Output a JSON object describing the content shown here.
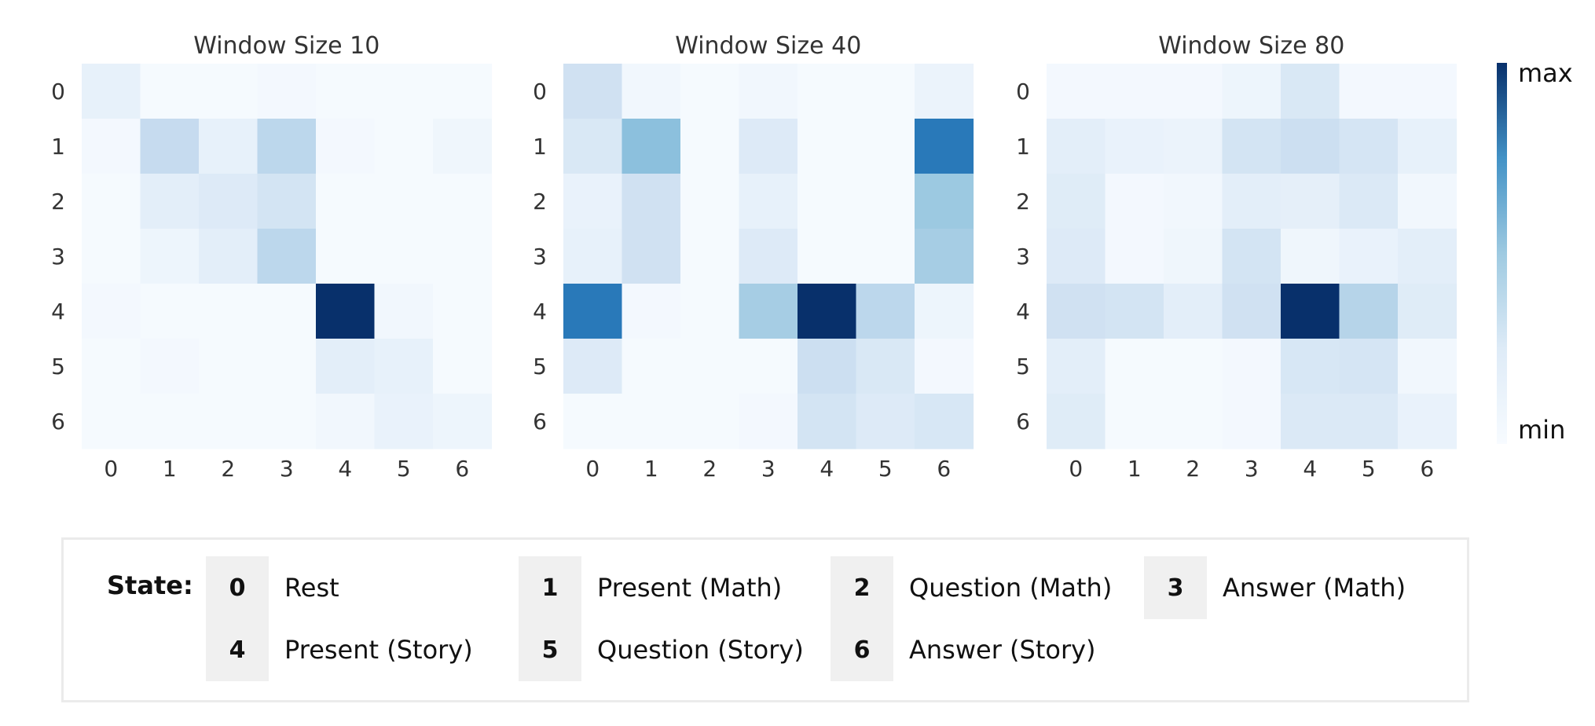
{
  "chart_data": {
    "type": "heatmap",
    "panels": [
      {
        "title": "Window Size 10",
        "x_ticks": [
          "0",
          "1",
          "2",
          "3",
          "4",
          "5",
          "6"
        ],
        "y_ticks": [
          "0",
          "1",
          "2",
          "3",
          "4",
          "5",
          "6"
        ],
        "values": [
          [
            0.08,
            0.01,
            0.01,
            0.02,
            0.01,
            0.01,
            0.01
          ],
          [
            0.02,
            0.25,
            0.08,
            0.28,
            0.02,
            0.01,
            0.04
          ],
          [
            0.01,
            0.1,
            0.13,
            0.18,
            0.01,
            0.01,
            0.01
          ],
          [
            0.01,
            0.05,
            0.1,
            0.28,
            0.01,
            0.01,
            0.01
          ],
          [
            0.02,
            0.01,
            0.01,
            0.01,
            1.0,
            0.03,
            0.01
          ],
          [
            0.01,
            0.02,
            0.01,
            0.01,
            0.1,
            0.08,
            0.01
          ],
          [
            0.01,
            0.01,
            0.01,
            0.01,
            0.03,
            0.07,
            0.05
          ]
        ]
      },
      {
        "title": "Window Size 40",
        "x_ticks": [
          "0",
          "1",
          "2",
          "3",
          "4",
          "5",
          "6"
        ],
        "y_ticks": [
          "0",
          "1",
          "2",
          "3",
          "4",
          "5",
          "6"
        ],
        "values": [
          [
            0.2,
            0.03,
            0.01,
            0.03,
            0.01,
            0.01,
            0.06
          ],
          [
            0.15,
            0.42,
            0.01,
            0.13,
            0.01,
            0.01,
            0.72
          ],
          [
            0.07,
            0.2,
            0.01,
            0.08,
            0.01,
            0.01,
            0.38
          ],
          [
            0.08,
            0.2,
            0.01,
            0.13,
            0.01,
            0.01,
            0.35
          ],
          [
            0.72,
            0.02,
            0.01,
            0.35,
            1.0,
            0.28,
            0.05
          ],
          [
            0.13,
            0.01,
            0.01,
            0.01,
            0.22,
            0.15,
            0.02
          ],
          [
            0.01,
            0.01,
            0.01,
            0.02,
            0.18,
            0.13,
            0.16
          ]
        ]
      },
      {
        "title": "Window Size 80",
        "x_ticks": [
          "0",
          "1",
          "2",
          "3",
          "4",
          "5",
          "6"
        ],
        "y_ticks": [
          "0",
          "1",
          "2",
          "3",
          "4",
          "5",
          "6"
        ],
        "values": [
          [
            0.02,
            0.02,
            0.02,
            0.05,
            0.15,
            0.02,
            0.02
          ],
          [
            0.1,
            0.07,
            0.06,
            0.18,
            0.22,
            0.17,
            0.08
          ],
          [
            0.12,
            0.02,
            0.03,
            0.1,
            0.09,
            0.14,
            0.03
          ],
          [
            0.13,
            0.02,
            0.04,
            0.18,
            0.04,
            0.07,
            0.1
          ],
          [
            0.2,
            0.18,
            0.1,
            0.2,
            1.0,
            0.3,
            0.12
          ],
          [
            0.1,
            0.01,
            0.01,
            0.02,
            0.16,
            0.17,
            0.03
          ],
          [
            0.12,
            0.01,
            0.01,
            0.02,
            0.14,
            0.14,
            0.07
          ]
        ]
      }
    ],
    "colorbar": {
      "max_label": "max",
      "min_label": "min",
      "colormap": "Blues"
    },
    "color_low": "#f7fbff",
    "color_high": "#08306b"
  },
  "legend": {
    "heading": "State:",
    "items": [
      {
        "code": "0",
        "label": "Rest"
      },
      {
        "code": "1",
        "label": "Present (Math)"
      },
      {
        "code": "2",
        "label": "Question (Math)"
      },
      {
        "code": "3",
        "label": "Answer (Math)"
      },
      {
        "code": "4",
        "label": "Present (Story)"
      },
      {
        "code": "5",
        "label": "Question (Story)"
      },
      {
        "code": "6",
        "label": "Answer (Story)"
      }
    ]
  }
}
